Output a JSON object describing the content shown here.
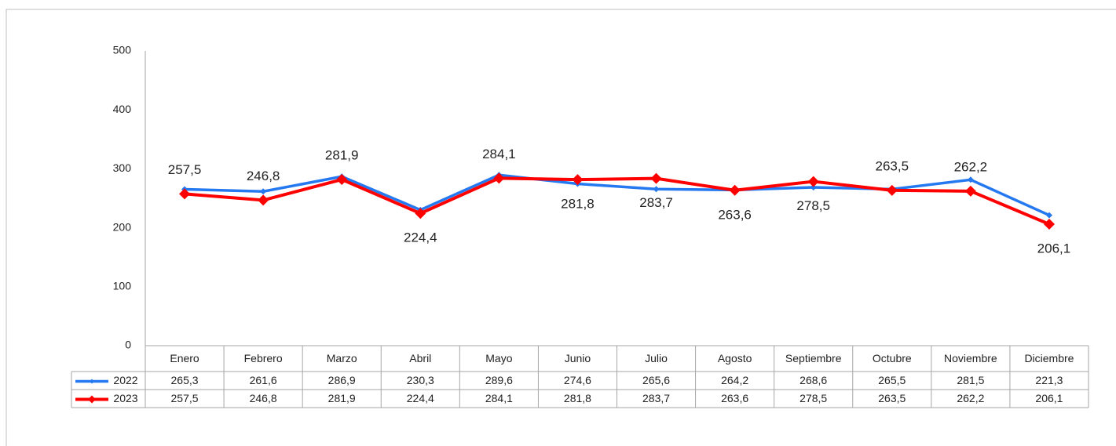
{
  "chart_data": {
    "type": "line",
    "categories": [
      "Enero",
      "Febrero",
      "Marzo",
      "Abril",
      "Mayo",
      "Junio",
      "Julio",
      "Agosto",
      "Septiembre",
      "Octubre",
      "Noviembre",
      "Diciembre"
    ],
    "series": [
      {
        "name": "2022",
        "color": "#2478f0",
        "values": [
          265.3,
          261.6,
          286.9,
          230.3,
          289.6,
          274.6,
          265.6,
          264.2,
          268.6,
          265.5,
          281.5,
          221.3
        ],
        "value_labels": [
          "265,3",
          "261,6",
          "286,9",
          "230,3",
          "289,6",
          "274,6",
          "265,6",
          "264,2",
          "268,6",
          "265,5",
          "281,5",
          "221,3"
        ]
      },
      {
        "name": "2023",
        "color": "#ff0000",
        "values": [
          257.5,
          246.8,
          281.9,
          224.4,
          284.1,
          281.8,
          283.7,
          263.6,
          278.5,
          263.5,
          262.2,
          206.1
        ],
        "value_labels": [
          "257,5",
          "246,8",
          "281,9",
          "224,4",
          "284,1",
          "281,8",
          "283,7",
          "263,6",
          "278,5",
          "263,5",
          "262,2",
          "206,1"
        ]
      }
    ],
    "ylim": [
      0,
      500
    ],
    "yticks": [
      0,
      100,
      200,
      300,
      400,
      500
    ],
    "grid": false
  }
}
